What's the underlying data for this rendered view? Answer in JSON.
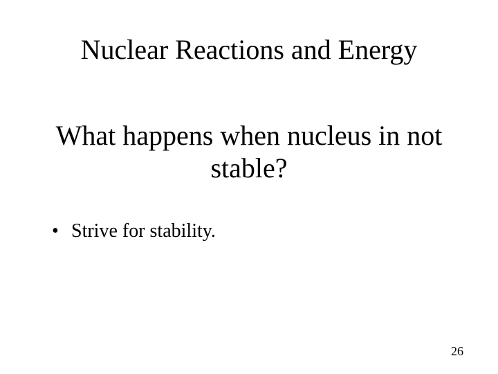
{
  "slide": {
    "title": "Nuclear Reactions and Energy",
    "subtitle": "What happens when nucleus in not stable?",
    "bullets": [
      "Strive for stability."
    ],
    "page_number": "26"
  },
  "style": {
    "background_color": "#ffffff",
    "text_color": "#000000",
    "font_family": "Times New Roman",
    "title_fontsize": 40,
    "subtitle_fontsize": 40,
    "body_fontsize": 28,
    "pagenum_fontsize": 18
  }
}
